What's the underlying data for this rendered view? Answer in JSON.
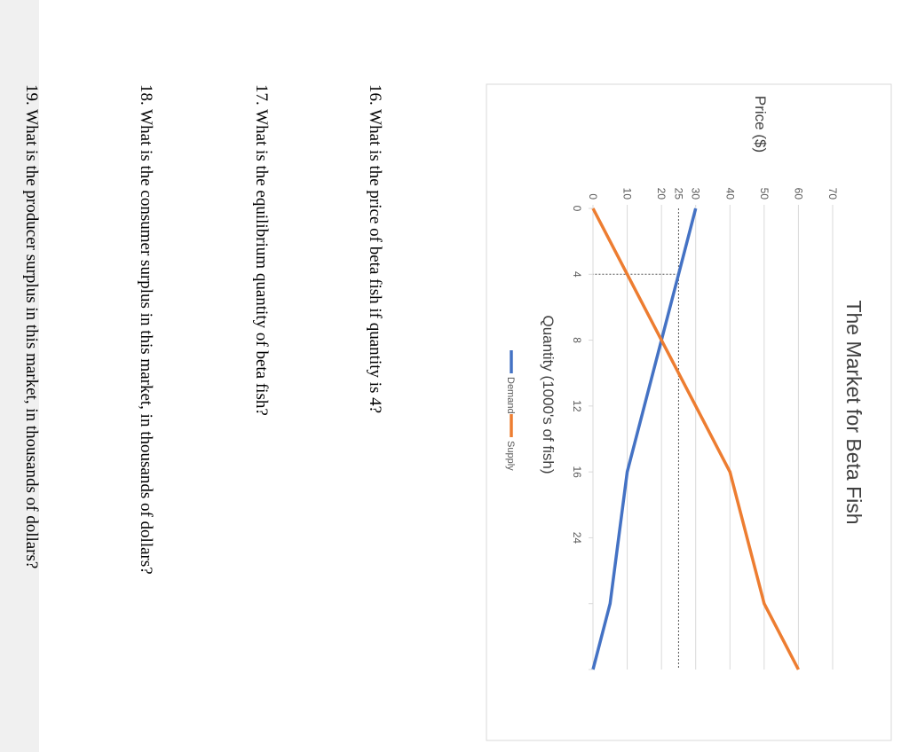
{
  "chart_data": {
    "type": "line",
    "title": "The Market for Beta Fish",
    "xlabel": "Quantity (1000's of fish)",
    "ylabel": "Price ($)",
    "x_ticks": [
      "0",
      "4",
      "8",
      "12",
      "16",
      "24"
    ],
    "y_ticks": [
      "0",
      "10",
      "20",
      "25",
      "30",
      "40",
      "50",
      "60",
      "70"
    ],
    "ylim": [
      0,
      70
    ],
    "grid": true,
    "legend_position": "bottom",
    "series": [
      {
        "name": "Demand",
        "color": "#4472c4",
        "points": [
          [
            0,
            30
          ],
          [
            4,
            25
          ],
          [
            8,
            20
          ],
          [
            12,
            15
          ],
          [
            16,
            10
          ],
          [
            24,
            5
          ],
          [
            28,
            0
          ]
        ]
      },
      {
        "name": "Supply",
        "color": "#ed7d31",
        "points": [
          [
            0,
            0
          ],
          [
            4,
            10
          ],
          [
            8,
            20
          ],
          [
            12,
            30
          ],
          [
            16,
            40
          ],
          [
            24,
            50
          ],
          [
            28,
            60
          ]
        ]
      }
    ],
    "annotations": [
      "dotted guide at quantity 4 and price 25"
    ]
  },
  "questions": [
    "16. What is the price of beta fish if quantity is 4?",
    "17. What is the equilibrium quantity of beta fish?",
    "18. What is the consumer surplus in this market, in thousands of dollars?",
    "19. What is the producer surplus in this market, in thousands of dollars?"
  ]
}
